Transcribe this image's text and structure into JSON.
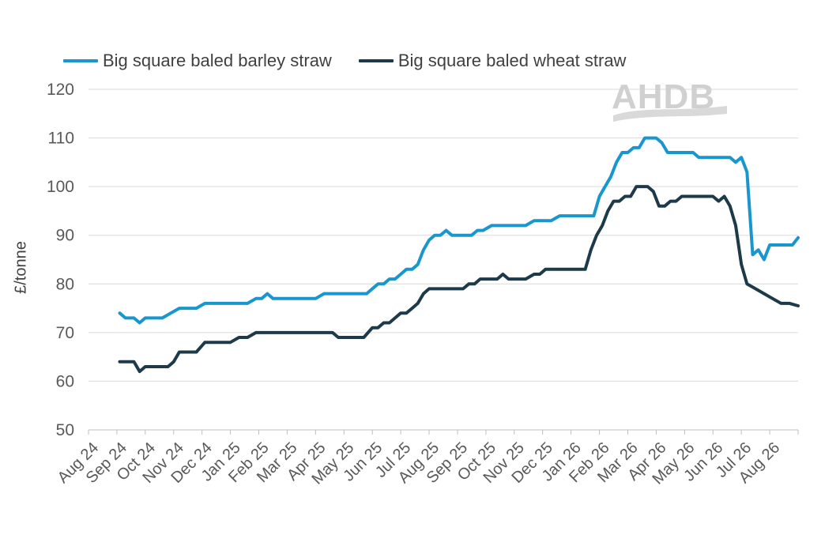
{
  "chart_data": {
    "type": "line",
    "title": "",
    "xlabel": "",
    "ylabel": "£/tonne",
    "ylim": [
      50,
      120
    ],
    "yticks": [
      50,
      60,
      70,
      80,
      90,
      100,
      110,
      120
    ],
    "xticks": [
      "Aug 24",
      "Sep 24",
      "Oct 24",
      "Nov 24",
      "Dec 24",
      "Jan 25",
      "Feb 25",
      "Mar 25",
      "Apr 25",
      "May 25",
      "Jun 25",
      "Jul 25",
      "Aug 25",
      "Sep 25",
      "Oct 25",
      "Nov 25",
      "Dec 25",
      "Jan 26",
      "Feb 26",
      "Mar 26",
      "Apr 26",
      "May 26",
      "Jun 26",
      "Jul 26",
      "Aug 26"
    ],
    "xlim_months": [
      0,
      25
    ],
    "grid": true,
    "legend_position": "top-left",
    "series": [
      {
        "name": "Big square baled barley straw",
        "color": "#1A96CF",
        "points": [
          [
            1.1,
            74
          ],
          [
            1.3,
            73
          ],
          [
            1.6,
            73
          ],
          [
            1.8,
            72
          ],
          [
            2.0,
            73
          ],
          [
            2.3,
            73
          ],
          [
            2.6,
            73
          ],
          [
            2.9,
            74
          ],
          [
            3.2,
            75
          ],
          [
            3.5,
            75
          ],
          [
            3.8,
            75
          ],
          [
            4.1,
            76
          ],
          [
            4.4,
            76
          ],
          [
            4.7,
            76
          ],
          [
            5.0,
            76
          ],
          [
            5.3,
            76
          ],
          [
            5.6,
            76
          ],
          [
            5.9,
            77
          ],
          [
            6.1,
            77
          ],
          [
            6.3,
            78
          ],
          [
            6.5,
            77
          ],
          [
            6.8,
            77
          ],
          [
            7.1,
            77
          ],
          [
            7.4,
            77
          ],
          [
            7.7,
            77
          ],
          [
            8.0,
            77
          ],
          [
            8.3,
            78
          ],
          [
            8.6,
            78
          ],
          [
            8.9,
            78
          ],
          [
            9.2,
            78
          ],
          [
            9.5,
            78
          ],
          [
            9.8,
            78
          ],
          [
            10.0,
            79
          ],
          [
            10.2,
            80
          ],
          [
            10.4,
            80
          ],
          [
            10.6,
            81
          ],
          [
            10.8,
            81
          ],
          [
            11.0,
            82
          ],
          [
            11.2,
            83
          ],
          [
            11.4,
            83
          ],
          [
            11.6,
            84
          ],
          [
            11.8,
            87
          ],
          [
            12.0,
            89
          ],
          [
            12.2,
            90
          ],
          [
            12.4,
            90
          ],
          [
            12.6,
            91
          ],
          [
            12.8,
            90
          ],
          [
            13.0,
            90
          ],
          [
            13.2,
            90
          ],
          [
            13.5,
            90
          ],
          [
            13.7,
            91
          ],
          [
            13.9,
            91
          ],
          [
            14.2,
            92
          ],
          [
            14.5,
            92
          ],
          [
            14.8,
            92
          ],
          [
            15.1,
            92
          ],
          [
            15.4,
            92
          ],
          [
            15.7,
            93
          ],
          [
            16.0,
            93
          ],
          [
            16.3,
            93
          ],
          [
            16.6,
            94
          ],
          [
            16.9,
            94
          ],
          [
            17.2,
            94
          ],
          [
            17.5,
            94
          ],
          [
            17.8,
            94
          ],
          [
            18.0,
            98
          ],
          [
            18.2,
            100
          ],
          [
            18.4,
            102
          ],
          [
            18.6,
            105
          ],
          [
            18.8,
            107
          ],
          [
            19.0,
            107
          ],
          [
            19.2,
            108
          ],
          [
            19.4,
            108
          ],
          [
            19.6,
            110
          ],
          [
            19.8,
            110
          ],
          [
            20.0,
            110
          ],
          [
            20.2,
            109
          ],
          [
            20.4,
            107
          ],
          [
            20.7,
            107
          ],
          [
            21.0,
            107
          ],
          [
            21.3,
            107
          ],
          [
            21.5,
            106
          ],
          [
            21.8,
            106
          ],
          [
            22.1,
            106
          ],
          [
            22.4,
            106
          ],
          [
            22.6,
            106
          ],
          [
            22.8,
            105
          ],
          [
            23.0,
            106
          ],
          [
            23.2,
            103
          ],
          [
            23.4,
            86
          ],
          [
            23.6,
            87
          ],
          [
            23.8,
            85
          ],
          [
            24.0,
            88
          ],
          [
            24.3,
            88
          ],
          [
            24.6,
            88
          ],
          [
            24.8,
            88
          ],
          [
            25.0,
            89.5
          ]
        ]
      },
      {
        "name": "Big square baled wheat straw",
        "color": "#1D3A4A",
        "points": [
          [
            1.1,
            64
          ],
          [
            1.3,
            64
          ],
          [
            1.6,
            64
          ],
          [
            1.8,
            62
          ],
          [
            2.0,
            63
          ],
          [
            2.3,
            63
          ],
          [
            2.6,
            63
          ],
          [
            2.8,
            63
          ],
          [
            3.0,
            64
          ],
          [
            3.2,
            66
          ],
          [
            3.5,
            66
          ],
          [
            3.8,
            66
          ],
          [
            4.1,
            68
          ],
          [
            4.4,
            68
          ],
          [
            4.7,
            68
          ],
          [
            5.0,
            68
          ],
          [
            5.3,
            69
          ],
          [
            5.6,
            69
          ],
          [
            5.9,
            70
          ],
          [
            6.2,
            70
          ],
          [
            6.5,
            70
          ],
          [
            6.8,
            70
          ],
          [
            7.1,
            70
          ],
          [
            7.4,
            70
          ],
          [
            7.7,
            70
          ],
          [
            8.0,
            70
          ],
          [
            8.3,
            70
          ],
          [
            8.6,
            70
          ],
          [
            8.8,
            69
          ],
          [
            9.1,
            69
          ],
          [
            9.4,
            69
          ],
          [
            9.7,
            69
          ],
          [
            10.0,
            71
          ],
          [
            10.2,
            71
          ],
          [
            10.4,
            72
          ],
          [
            10.6,
            72
          ],
          [
            10.8,
            73
          ],
          [
            11.0,
            74
          ],
          [
            11.2,
            74
          ],
          [
            11.4,
            75
          ],
          [
            11.6,
            76
          ],
          [
            11.8,
            78
          ],
          [
            12.0,
            79
          ],
          [
            12.3,
            79
          ],
          [
            12.6,
            79
          ],
          [
            12.9,
            79
          ],
          [
            13.2,
            79
          ],
          [
            13.4,
            80
          ],
          [
            13.6,
            80
          ],
          [
            13.8,
            81
          ],
          [
            14.1,
            81
          ],
          [
            14.4,
            81
          ],
          [
            14.6,
            82
          ],
          [
            14.8,
            81
          ],
          [
            15.1,
            81
          ],
          [
            15.4,
            81
          ],
          [
            15.7,
            82
          ],
          [
            15.9,
            82
          ],
          [
            16.1,
            83
          ],
          [
            16.4,
            83
          ],
          [
            16.7,
            83
          ],
          [
            17.0,
            83
          ],
          [
            17.3,
            83
          ],
          [
            17.5,
            83
          ],
          [
            17.7,
            87
          ],
          [
            17.9,
            90
          ],
          [
            18.1,
            92
          ],
          [
            18.3,
            95
          ],
          [
            18.5,
            97
          ],
          [
            18.7,
            97
          ],
          [
            18.9,
            98
          ],
          [
            19.1,
            98
          ],
          [
            19.3,
            100
          ],
          [
            19.5,
            100
          ],
          [
            19.7,
            100
          ],
          [
            19.9,
            99
          ],
          [
            20.1,
            96
          ],
          [
            20.3,
            96
          ],
          [
            20.5,
            97
          ],
          [
            20.7,
            97
          ],
          [
            20.9,
            98
          ],
          [
            21.2,
            98
          ],
          [
            21.5,
            98
          ],
          [
            21.8,
            98
          ],
          [
            22.0,
            98
          ],
          [
            22.2,
            97
          ],
          [
            22.4,
            98
          ],
          [
            22.6,
            96
          ],
          [
            22.8,
            92
          ],
          [
            23.0,
            84
          ],
          [
            23.2,
            80
          ],
          [
            23.5,
            79
          ],
          [
            23.8,
            78
          ],
          [
            24.1,
            77
          ],
          [
            24.4,
            76
          ],
          [
            24.7,
            76
          ],
          [
            25.0,
            75.5
          ]
        ]
      }
    ]
  },
  "logo": {
    "text": "AHDB",
    "color": "#d0d0d0"
  }
}
